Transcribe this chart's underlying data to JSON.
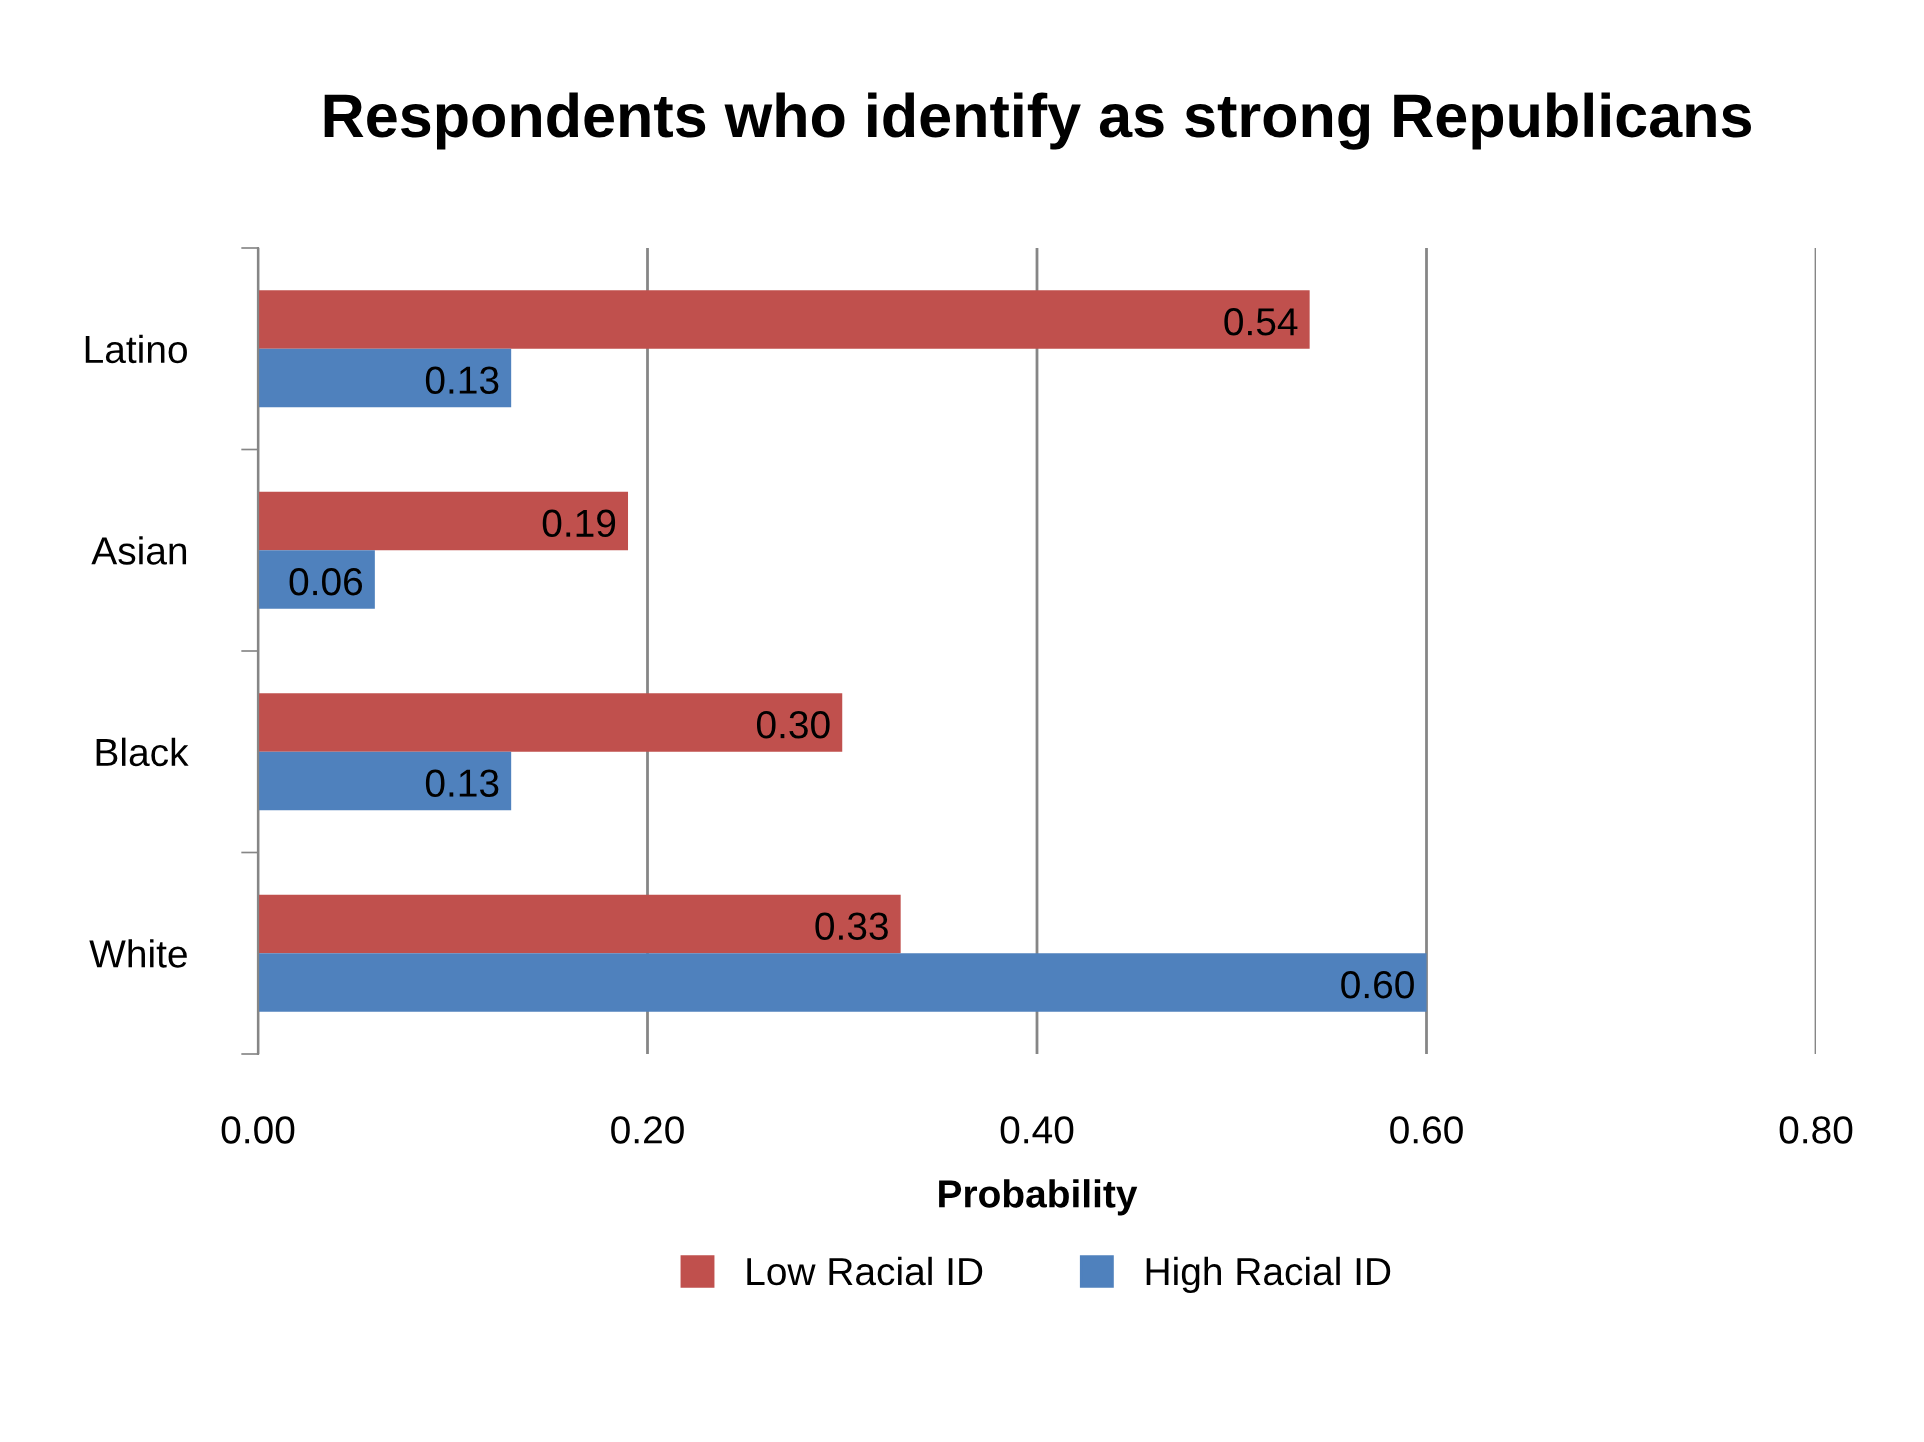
{
  "chart_data": {
    "type": "bar",
    "orientation": "horizontal",
    "title": "Respondents who identify as strong Republicans",
    "xlabel": "Probability",
    "categories": [
      "Latino",
      "Asian",
      "Black",
      "White"
    ],
    "series": [
      {
        "name": "Low Racial ID",
        "color": "#c0504d",
        "values": [
          0.54,
          0.19,
          0.3,
          0.33
        ],
        "value_labels": [
          "0.54",
          "0.19",
          "0.30",
          "0.33"
        ]
      },
      {
        "name": "High Racial ID",
        "color": "#4f81bd",
        "values": [
          0.13,
          0.06,
          0.13,
          0.6
        ],
        "value_labels": [
          "0.13",
          "0.06",
          "0.13",
          "0.60"
        ]
      }
    ],
    "xlim": [
      0,
      0.8
    ],
    "xticks": [
      {
        "value": 0,
        "label": "0.00"
      },
      {
        "value": 0.2,
        "label": "0.20"
      },
      {
        "value": 0.4,
        "label": "0.40"
      },
      {
        "value": 0.6,
        "label": "0.60"
      },
      {
        "value": 0.8,
        "label": "0.80"
      }
    ],
    "grid": "x",
    "legend": "bottom"
  }
}
